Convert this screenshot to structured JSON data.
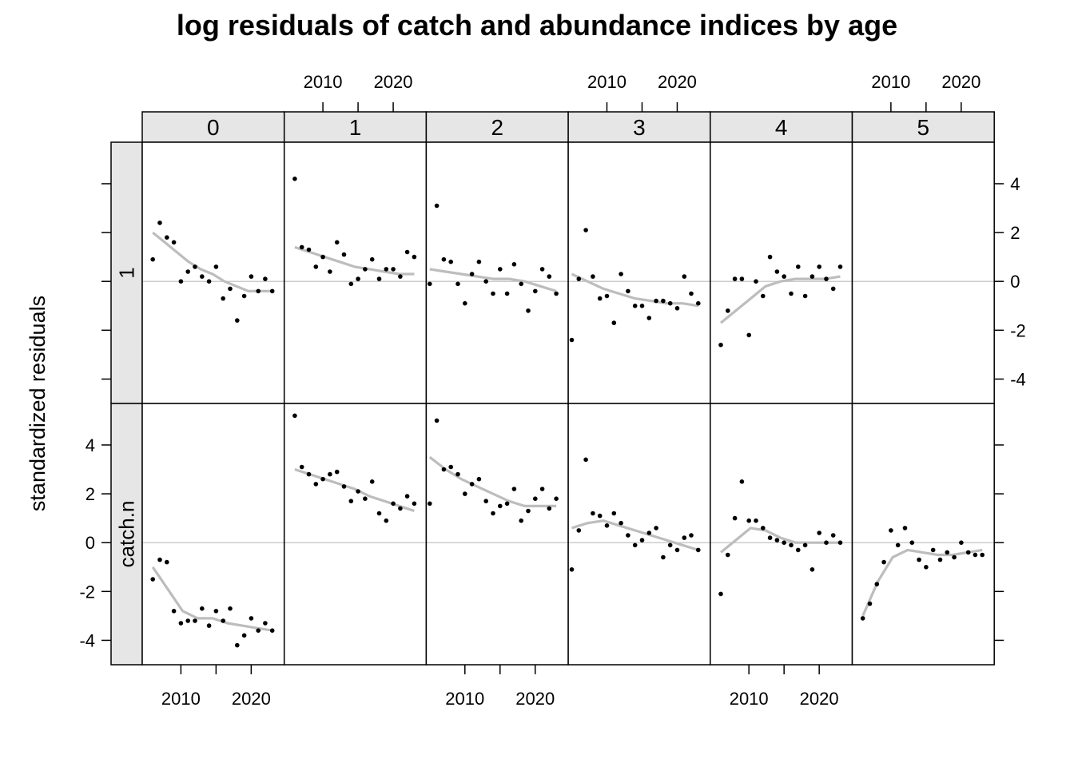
{
  "chart_data": {
    "type": "scatter",
    "title": "log residuals of catch and abundance indices by age",
    "xlabel": "",
    "ylabel": "standardized residuals",
    "xlim": [
      2004.5,
      2024.7
    ],
    "ylim": [
      -5.0,
      5.7
    ],
    "x_ticks": [
      2010,
      2015,
      2020
    ],
    "x_tick_labels": [
      "2010",
      "",
      "2020"
    ],
    "y_ticks": [
      -4,
      -2,
      0,
      2,
      4
    ],
    "y_tick_labels": [
      "-4",
      "-2",
      "0",
      "2",
      "4"
    ],
    "reference_line": 0,
    "ages": [
      "0",
      "1",
      "2",
      "3",
      "4",
      "5"
    ],
    "rows": [
      "catch.n",
      "1"
    ],
    "panels": [
      {
        "row": "1",
        "age": "0",
        "x": [
          2006,
          2007,
          2008,
          2009,
          2010,
          2011,
          2012,
          2013,
          2014,
          2015,
          2016,
          2017,
          2018,
          2019,
          2020,
          2021,
          2022,
          2023
        ],
        "y": [
          0.9,
          2.4,
          1.8,
          1.6,
          0.0,
          0.4,
          0.6,
          0.2,
          0.0,
          0.6,
          -0.7,
          -0.3,
          -1.6,
          -0.6,
          0.2,
          -0.4,
          0.1,
          -0.4
        ],
        "smooth": [
          2.0,
          1.6,
          1.2,
          0.8,
          0.5,
          0.3,
          0.0,
          -0.2,
          -0.4,
          -0.4,
          -0.4
        ]
      },
      {
        "row": "1",
        "age": "1",
        "x": [
          2006,
          2007,
          2008,
          2009,
          2010,
          2011,
          2012,
          2013,
          2014,
          2015,
          2016,
          2017,
          2018,
          2019,
          2020,
          2021,
          2022,
          2023
        ],
        "y": [
          4.2,
          1.4,
          1.3,
          0.6,
          1.0,
          0.4,
          1.6,
          1.1,
          -0.1,
          0.1,
          0.5,
          0.9,
          0.1,
          0.5,
          0.5,
          0.2,
          1.2,
          1.0
        ],
        "smooth": [
          1.4,
          1.2,
          1.0,
          0.8,
          0.6,
          0.5,
          0.4,
          0.3,
          0.3
        ]
      },
      {
        "row": "1",
        "age": "2",
        "x": [
          2005,
          2006,
          2007,
          2008,
          2009,
          2010,
          2011,
          2012,
          2013,
          2014,
          2015,
          2016,
          2017,
          2018,
          2019,
          2020,
          2021,
          2022,
          2023
        ],
        "y": [
          -0.1,
          3.1,
          0.9,
          0.8,
          -0.1,
          -0.9,
          0.3,
          0.8,
          0.0,
          -0.5,
          0.5,
          -0.5,
          0.7,
          -0.1,
          -1.2,
          -0.4,
          0.5,
          0.2,
          -0.5
        ],
        "smooth": [
          0.5,
          0.4,
          0.3,
          0.2,
          0.1,
          0.1,
          0.0,
          -0.2,
          -0.4
        ]
      },
      {
        "row": "1",
        "age": "3",
        "x": [
          2005,
          2006,
          2007,
          2008,
          2009,
          2010,
          2011,
          2012,
          2013,
          2014,
          2015,
          2016,
          2017,
          2018,
          2019,
          2020,
          2021,
          2022,
          2023
        ],
        "y": [
          -2.4,
          0.1,
          2.1,
          0.2,
          -0.7,
          -0.6,
          -1.7,
          0.3,
          -0.4,
          -1.0,
          -1.0,
          -1.5,
          -0.8,
          -0.8,
          -0.9,
          -1.1,
          0.2,
          -0.5,
          -0.9
        ],
        "smooth": [
          0.3,
          0.0,
          -0.3,
          -0.5,
          -0.7,
          -0.8,
          -0.9,
          -0.9,
          -1.0
        ]
      },
      {
        "row": "1",
        "age": "4",
        "x": [
          2006,
          2007,
          2008,
          2009,
          2010,
          2011,
          2012,
          2013,
          2014,
          2015,
          2016,
          2017,
          2018,
          2019,
          2020,
          2021,
          2022,
          2023
        ],
        "y": [
          -2.6,
          -1.2,
          0.1,
          0.1,
          -2.2,
          0.0,
          -0.6,
          1.0,
          0.4,
          0.2,
          -0.5,
          0.6,
          -0.6,
          0.2,
          0.6,
          0.1,
          -0.3,
          0.6
        ],
        "smooth": [
          -1.7,
          -1.2,
          -0.7,
          -0.2,
          0.0,
          0.1,
          0.1,
          0.1,
          0.2
        ]
      },
      {
        "row": "1",
        "age": "5",
        "x": [],
        "y": [],
        "smooth": []
      },
      {
        "row": "catch.n",
        "age": "0",
        "x": [
          2006,
          2007,
          2008,
          2009,
          2010,
          2011,
          2012,
          2013,
          2014,
          2015,
          2016,
          2017,
          2018,
          2019,
          2020,
          2021,
          2022,
          2023
        ],
        "y": [
          -1.5,
          -0.7,
          -0.8,
          -2.8,
          -3.3,
          -3.2,
          -3.2,
          -2.7,
          -3.4,
          -2.8,
          -3.2,
          -2.7,
          -4.2,
          -3.8,
          -3.1,
          -3.6,
          -3.3,
          -3.6
        ],
        "smooth": [
          -1.0,
          -1.9,
          -2.8,
          -3.1,
          -3.1,
          -3.3,
          -3.4,
          -3.5,
          -3.6
        ]
      },
      {
        "row": "catch.n",
        "age": "1",
        "x": [
          2006,
          2007,
          2008,
          2009,
          2010,
          2011,
          2012,
          2013,
          2014,
          2015,
          2016,
          2017,
          2018,
          2019,
          2020,
          2021,
          2022,
          2023
        ],
        "y": [
          5.2,
          3.1,
          2.8,
          2.4,
          2.6,
          2.8,
          2.9,
          2.3,
          1.7,
          2.1,
          1.8,
          2.5,
          1.2,
          0.9,
          1.6,
          1.4,
          1.9,
          1.6
        ],
        "smooth": [
          3.0,
          2.8,
          2.6,
          2.4,
          2.2,
          1.9,
          1.7,
          1.5,
          1.3
        ]
      },
      {
        "row": "catch.n",
        "age": "2",
        "x": [
          2005,
          2006,
          2007,
          2008,
          2009,
          2010,
          2011,
          2012,
          2013,
          2014,
          2015,
          2016,
          2017,
          2018,
          2019,
          2020,
          2021,
          2022,
          2023
        ],
        "y": [
          1.6,
          5.0,
          3.0,
          3.1,
          2.8,
          2.0,
          2.4,
          2.6,
          1.7,
          1.2,
          1.5,
          1.6,
          2.2,
          0.9,
          1.3,
          1.8,
          2.2,
          1.4,
          1.8
        ],
        "smooth": [
          3.5,
          3.0,
          2.6,
          2.3,
          2.0,
          1.7,
          1.5,
          1.5,
          1.5
        ]
      },
      {
        "row": "catch.n",
        "age": "3",
        "x": [
          2005,
          2006,
          2007,
          2008,
          2009,
          2010,
          2011,
          2012,
          2013,
          2014,
          2015,
          2016,
          2017,
          2018,
          2019,
          2020,
          2021,
          2022,
          2023
        ],
        "y": [
          -1.1,
          0.5,
          3.4,
          1.2,
          1.1,
          0.7,
          1.2,
          0.8,
          0.3,
          -0.1,
          0.1,
          0.4,
          0.6,
          -0.6,
          -0.1,
          -0.3,
          0.2,
          0.3,
          -0.3
        ],
        "smooth": [
          0.6,
          0.8,
          0.9,
          0.7,
          0.5,
          0.3,
          0.1,
          -0.1,
          -0.3
        ]
      },
      {
        "row": "catch.n",
        "age": "4",
        "x": [
          2006,
          2007,
          2008,
          2009,
          2010,
          2011,
          2012,
          2013,
          2014,
          2015,
          2016,
          2017,
          2018,
          2019,
          2020,
          2021,
          2022,
          2023
        ],
        "y": [
          -2.1,
          -0.5,
          1.0,
          2.5,
          0.9,
          0.9,
          0.6,
          0.2,
          0.1,
          0.0,
          -0.1,
          -0.3,
          -0.1,
          -1.1,
          0.4,
          0.0,
          0.3,
          0.0
        ],
        "smooth": [
          -0.4,
          0.1,
          0.6,
          0.5,
          0.2,
          0.0,
          0.0,
          0.0,
          0.0
        ]
      },
      {
        "row": "catch.n",
        "age": "5",
        "x": [
          2006,
          2007,
          2008,
          2009,
          2010,
          2011,
          2012,
          2013,
          2014,
          2015,
          2016,
          2017,
          2018,
          2019,
          2020,
          2021,
          2022,
          2023
        ],
        "y": [
          -3.1,
          -2.5,
          -1.7,
          -0.8,
          0.5,
          -0.1,
          0.6,
          0.0,
          -0.7,
          -1.0,
          -0.3,
          -0.7,
          -0.4,
          -0.6,
          0.0,
          -0.4,
          -0.5,
          -0.5
        ],
        "smooth": [
          -3.0,
          -1.6,
          -0.6,
          -0.3,
          -0.4,
          -0.5,
          -0.5,
          -0.4,
          -0.3
        ]
      }
    ]
  }
}
